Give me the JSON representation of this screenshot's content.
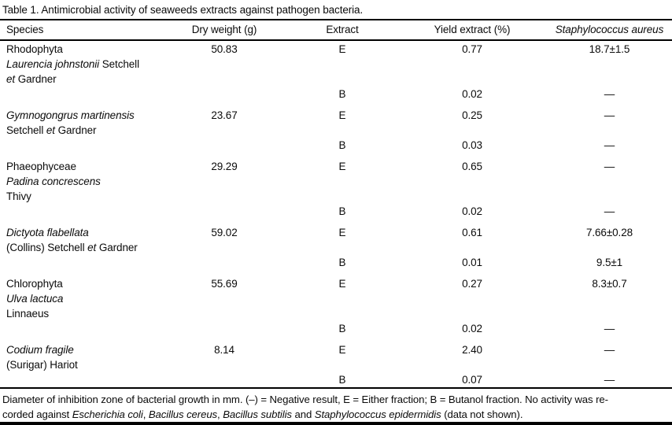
{
  "title": "Table 1. Antimicrobial activity of seaweeds extracts against pathogen bacteria.",
  "table": {
    "columns": [
      {
        "label": "Species"
      },
      {
        "label": "Dry weight (g)"
      },
      {
        "label": "Extract"
      },
      {
        "label": "Yield extract (%)"
      },
      {
        "label": "Staphylococcus aureus"
      }
    ],
    "negative_symbol": "—",
    "blocks": [
      {
        "species_lines": [
          [
            {
              "text": "Rhodophyta"
            }
          ],
          [
            {
              "text": "Laurencia johnstonii",
              "italic": true
            },
            {
              "text": " Setchell"
            }
          ],
          [
            {
              "text": "et",
              "italic": true
            },
            {
              "text": " Gardner"
            }
          ]
        ],
        "dry_weight": "50.83",
        "rows": [
          {
            "extract": "E",
            "yield": "0.77",
            "aureus": "18.7±1.5"
          },
          {
            "extract": "B",
            "yield": "0.02",
            "aureus": "—"
          }
        ]
      },
      {
        "species_lines": [
          [
            {
              "text": "Gymnogongrus martinensis",
              "italic": true
            }
          ],
          [
            {
              "text": "Setchell "
            },
            {
              "text": "et",
              "italic": true
            },
            {
              "text": " Gardner"
            }
          ]
        ],
        "dry_weight": "23.67",
        "rows": [
          {
            "extract": "E",
            "yield": "0.25",
            "aureus": "—"
          },
          {
            "extract": "B",
            "yield": "0.03",
            "aureus": "—"
          }
        ]
      },
      {
        "species_lines": [
          [
            {
              "text": "Phaeophyceae"
            }
          ],
          [
            {
              "text": "Padina concrescens",
              "italic": true
            }
          ],
          [
            {
              "text": "Thivy"
            }
          ]
        ],
        "dry_weight": "29.29",
        "rows": [
          {
            "extract": "E",
            "yield": "0.65",
            "aureus": "—"
          },
          {
            "extract": "B",
            "yield": "0.02",
            "aureus": "—"
          }
        ]
      },
      {
        "species_lines": [
          [
            {
              "text": "Dictyota flabellata",
              "italic": true
            }
          ],
          [
            {
              "text": "(Collins) Setchell "
            },
            {
              "text": "et",
              "italic": true
            },
            {
              "text": " Gardner"
            }
          ]
        ],
        "dry_weight": "59.02",
        "rows": [
          {
            "extract": "E",
            "yield": "0.61",
            "aureus": "7.66±0.28"
          },
          {
            "extract": "B",
            "yield": "0.01",
            "aureus": "9.5±1"
          }
        ]
      },
      {
        "species_lines": [
          [
            {
              "text": "Chlorophyta"
            }
          ],
          [
            {
              "text": "Ulva lactuca",
              "italic": true
            }
          ],
          [
            {
              "text": "Linnaeus"
            }
          ]
        ],
        "dry_weight": "55.69",
        "rows": [
          {
            "extract": "E",
            "yield": "0.27",
            "aureus": "8.3±0.7"
          },
          {
            "extract": "B",
            "yield": "0.02",
            "aureus": "—"
          }
        ]
      },
      {
        "species_lines": [
          [
            {
              "text": "Codium fragile",
              "italic": true
            }
          ],
          [
            {
              "text": "(Surigar) Hariot"
            }
          ]
        ],
        "dry_weight": "8.14",
        "rows": [
          {
            "extract": "E",
            "yield": "2.40",
            "aureus": "—"
          },
          {
            "extract": "B",
            "yield": "0.07",
            "aureus": "—"
          }
        ]
      }
    ]
  },
  "footnote": {
    "line1": "Diameter of inhibition zone of bacterial growth in mm. (–) = Negative result, E = Either fraction; B = Butanol fraction. No activity was re-",
    "line2": [
      {
        "text": "corded against "
      },
      {
        "text": "Escherichia coli",
        "italic": true
      },
      {
        "text": ", "
      },
      {
        "text": "Bacillus cereus",
        "italic": true
      },
      {
        "text": ", "
      },
      {
        "text": "Bacillus subtilis",
        "italic": true
      },
      {
        "text": " and "
      },
      {
        "text": "Staphylococcus epidermidis",
        "italic": true
      },
      {
        "text": " (data not shown)."
      }
    ]
  }
}
